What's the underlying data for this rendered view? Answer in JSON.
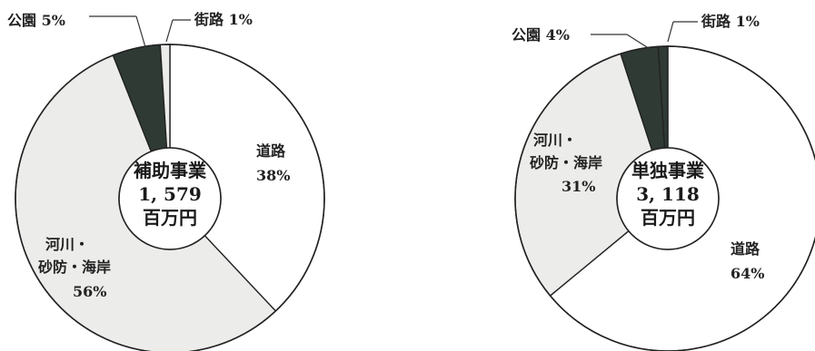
{
  "chart_data": [
    {
      "type": "pie",
      "center_label": [
        "補助事業",
        "1, 579",
        "百万円"
      ],
      "slices": [
        {
          "name": "道路",
          "value": 38,
          "label": "38%",
          "color": "#ffffff"
        },
        {
          "name": "河川・砂防・海岸",
          "value": 56,
          "label": "56%",
          "color": "#ececea"
        },
        {
          "name": "公園",
          "value": 5,
          "label": "5%",
          "color": "#2f3a35"
        },
        {
          "name": "街路",
          "value": 1,
          "label": "1%",
          "color": "#ececea"
        }
      ]
    },
    {
      "type": "pie",
      "center_label": [
        "単独事業",
        "3, 118",
        "百万円"
      ],
      "slices": [
        {
          "name": "道路",
          "value": 64,
          "label": "64%",
          "color": "#ffffff"
        },
        {
          "name": "河川・砂防・海岸",
          "value": 31,
          "label": "31%",
          "color": "#ececea"
        },
        {
          "name": "公園",
          "value": 4,
          "label": "4%",
          "color": "#2f3a35"
        },
        {
          "name": "街路",
          "value": 1,
          "label": "1%",
          "color": "#2f3a35"
        }
      ]
    }
  ],
  "labels": {
    "left": {
      "road_name": "道路",
      "road_pct": "38%",
      "river_name_1": "河川・",
      "river_name_2": "砂防・海岸",
      "river_pct": "56%",
      "park": "公園 5%",
      "street": "街路 1%"
    },
    "right": {
      "road_name": "道路",
      "road_pct": "64%",
      "river_name_1": "河川・",
      "river_name_2": "砂防・海岸",
      "river_pct": "31%",
      "park": "公園 4%",
      "street": "街路 1%"
    }
  }
}
